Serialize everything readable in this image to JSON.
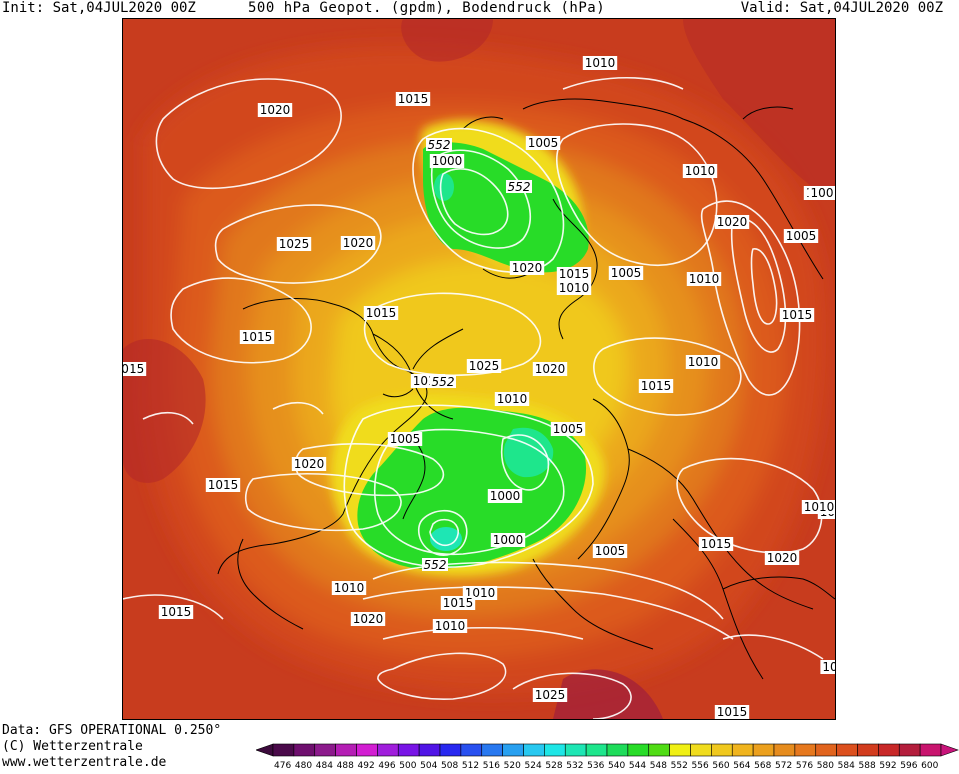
{
  "header": {
    "init": "Init: Sat,04JUL2020 00Z",
    "title": "500 hPa Geopot. (gpdm), Bodendruck (hPa)",
    "valid": "Valid: Sat,04JUL2020 00Z"
  },
  "footer": {
    "data_source": "Data: GFS OPERATIONAL 0.250°",
    "copyright": "(C) Wetterzentrale",
    "website": "www.wetterzentrale.de"
  },
  "colorbar": {
    "ticks": [
      "476",
      "480",
      "484",
      "488",
      "492",
      "496",
      "500",
      "504",
      "508",
      "512",
      "516",
      "520",
      "524",
      "528",
      "532",
      "536",
      "540",
      "544",
      "548",
      "552",
      "556",
      "560",
      "564",
      "568",
      "572",
      "576",
      "580",
      "584",
      "588",
      "592",
      "596",
      "600"
    ],
    "colors": [
      "#4a0a4a",
      "#6e0f6e",
      "#8c1a8c",
      "#b41eb4",
      "#d21ed2",
      "#a01edc",
      "#7814e6",
      "#5014e6",
      "#2828f0",
      "#2850f0",
      "#2878f0",
      "#28a0f0",
      "#28c8f0",
      "#1ee6e6",
      "#1ee6b4",
      "#1ee68c",
      "#1edc5a",
      "#28dc28",
      "#50dc14",
      "#f0f014",
      "#f0dc1e",
      "#f0c81e",
      "#f0b41e",
      "#eba01e",
      "#e68c1e",
      "#e6781e",
      "#e1641e",
      "#dc501e",
      "#d23c1e",
      "#c82828",
      "#b41e3c",
      "#c8146e"
    ]
  },
  "map": {
    "pressure_labels": [
      "1010",
      "1015",
      "1020",
      "1005",
      "1000",
      "1010",
      "1025",
      "1020",
      "1020",
      "1015",
      "1010",
      "1005",
      "1010",
      "1015",
      "1015",
      "1010",
      "1025",
      "1020",
      "1015",
      "1015",
      "1010",
      "1010",
      "1005",
      "1005",
      "1000",
      "1020",
      "1015",
      "1015",
      "1000",
      "1010",
      "1020",
      "1010",
      "1005",
      "1015",
      "1010",
      "1015",
      "1020",
      "1025",
      "1000",
      "1020",
      "1010",
      "1015",
      "1005",
      "1010",
      "1015"
    ],
    "geopotential_labels": [
      "552",
      "552",
      "552",
      "552"
    ],
    "edge_labels": [
      "100",
      "10",
      "0"
    ]
  }
}
